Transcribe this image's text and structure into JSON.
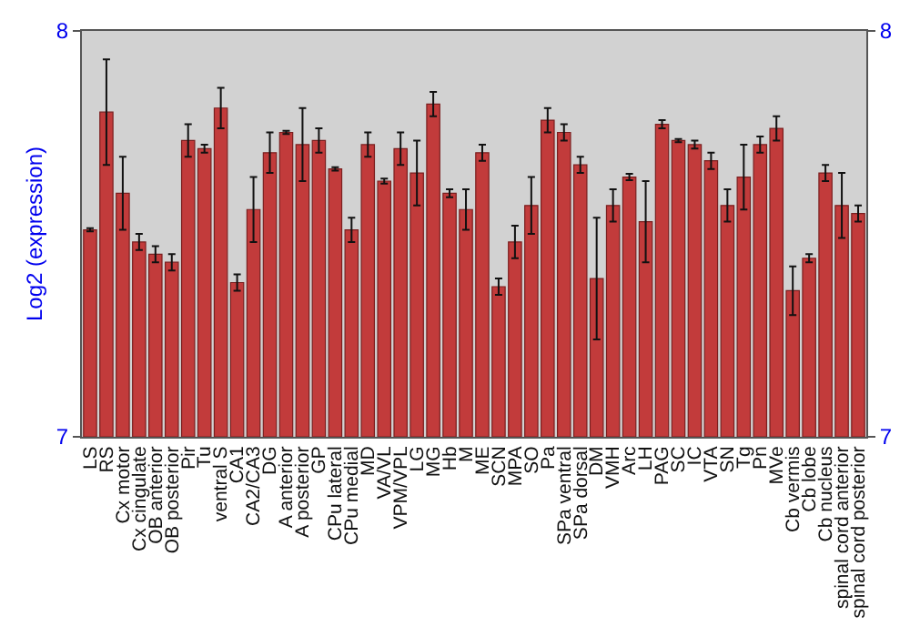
{
  "chart_data": {
    "type": "bar",
    "ylabel": "Log2 (expression)",
    "categories": [
      "LS",
      "RS",
      "Cx motor",
      "Cx cingulate",
      "OB anterior",
      "OB posterior",
      "Pir",
      "Tu",
      "ventral S",
      "CA1",
      "CA2/CA3",
      "DG",
      "A anterior",
      "A posterior",
      "GP",
      "CPu lateral",
      "CPu medial",
      "MD",
      "VA/VL",
      "VPM/VPL",
      "LG",
      "MG",
      "Hb",
      "M",
      "ME",
      "SCN",
      "MPA",
      "SO",
      "Pa",
      "SPa ventral",
      "SPa dorsal",
      "DM",
      "VMH",
      "Arc",
      "LH",
      "PAG",
      "SC",
      "IC",
      "VTA",
      "SN",
      "Tg",
      "Pn",
      "MVe",
      "Cb vermis",
      "Cb lobe",
      "Cb nucleus",
      "spinal cord anterior",
      "spinal cord posterior"
    ],
    "values": [
      7.51,
      7.8,
      7.6,
      7.48,
      7.45,
      7.43,
      7.73,
      7.71,
      7.81,
      7.38,
      7.56,
      7.7,
      7.75,
      7.72,
      7.73,
      7.66,
      7.51,
      7.72,
      7.63,
      7.71,
      7.65,
      7.82,
      7.6,
      7.56,
      7.7,
      7.37,
      7.48,
      7.57,
      7.78,
      7.75,
      7.67,
      7.39,
      7.57,
      7.64,
      7.53,
      7.77,
      7.73,
      7.72,
      7.68,
      7.57,
      7.64,
      7.72,
      7.76,
      7.36,
      7.44,
      7.65,
      7.57,
      7.55
    ],
    "errors": [
      0.004,
      0.13,
      0.09,
      0.02,
      0.02,
      0.02,
      0.04,
      0.01,
      0.05,
      0.02,
      0.08,
      0.05,
      0.004,
      0.09,
      0.03,
      0.004,
      0.03,
      0.03,
      0.006,
      0.04,
      0.08,
      0.03,
      0.01,
      0.05,
      0.02,
      0.02,
      0.04,
      0.07,
      0.03,
      0.02,
      0.02,
      0.15,
      0.04,
      0.008,
      0.1,
      0.01,
      0.004,
      0.01,
      0.02,
      0.04,
      0.08,
      0.02,
      0.03,
      0.06,
      0.01,
      0.02,
      0.08,
      0.02
    ],
    "color": "#c23b3b",
    "ylim": [
      7,
      8
    ],
    "yticks": [
      7,
      8
    ],
    "y2lim": [
      7,
      8
    ],
    "y2ticks": [
      7,
      8
    ]
  }
}
